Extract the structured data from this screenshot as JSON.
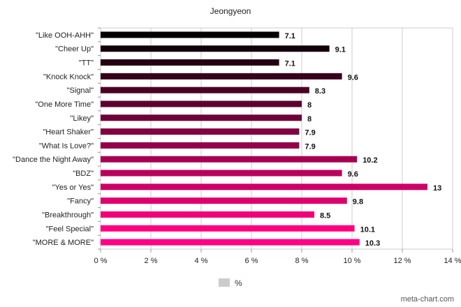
{
  "chart_data": {
    "type": "bar",
    "orientation": "horizontal",
    "title": "Jeongyeon",
    "categories": [
      "\"Like OOH-AHH\"",
      "\"Cheer Up\"",
      "\"TT\"",
      "\"Knock Knock\"",
      "\"Signal\"",
      "\"One More Time\"",
      "\"Likey\"",
      "\"Heart Shaker\"",
      "\"What Is Love?\"",
      "\"Dance the Night Away\"",
      "\"BDZ\"",
      "\"Yes or Yes\"",
      "\"Fancy\"",
      "\"Breakthrough\"",
      "\"Feel Special\"",
      "\"MORE & MORE\""
    ],
    "values": [
      7.1,
      9.1,
      7.1,
      9.6,
      8.3,
      8,
      8,
      7.9,
      7.9,
      10.2,
      9.6,
      13,
      9.8,
      8.5,
      10.1,
      10.3
    ],
    "value_labels": [
      "7.1",
      "9.1",
      "7.1",
      "9.6",
      "8.3",
      "8",
      "8",
      "7.9",
      "7.9",
      "10.2",
      "9.6",
      "13",
      "9.8",
      "8.5",
      "10.1",
      "10.3"
    ],
    "bar_colors": [
      "#000000",
      "#13000a",
      "#250013",
      "#38001c",
      "#4a0025",
      "#5d002e",
      "#700038",
      "#820041",
      "#95004a",
      "#a70053",
      "#ba005c",
      "#cc0066",
      "#df006f",
      "#f10078",
      "#ff0080",
      "#ff0086"
    ],
    "xlim": [
      0,
      14
    ],
    "x_ticks": [
      "0 %",
      "2 %",
      "4 %",
      "6 %",
      "8 %",
      "10 %",
      "12 %",
      "14 %"
    ],
    "x_tick_values": [
      0,
      2,
      4,
      6,
      8,
      10,
      12,
      14
    ],
    "grid": true,
    "legend": {
      "label": "%",
      "color": "#cccccc",
      "placement": "bottom"
    },
    "credit": "meta-chart.com"
  }
}
